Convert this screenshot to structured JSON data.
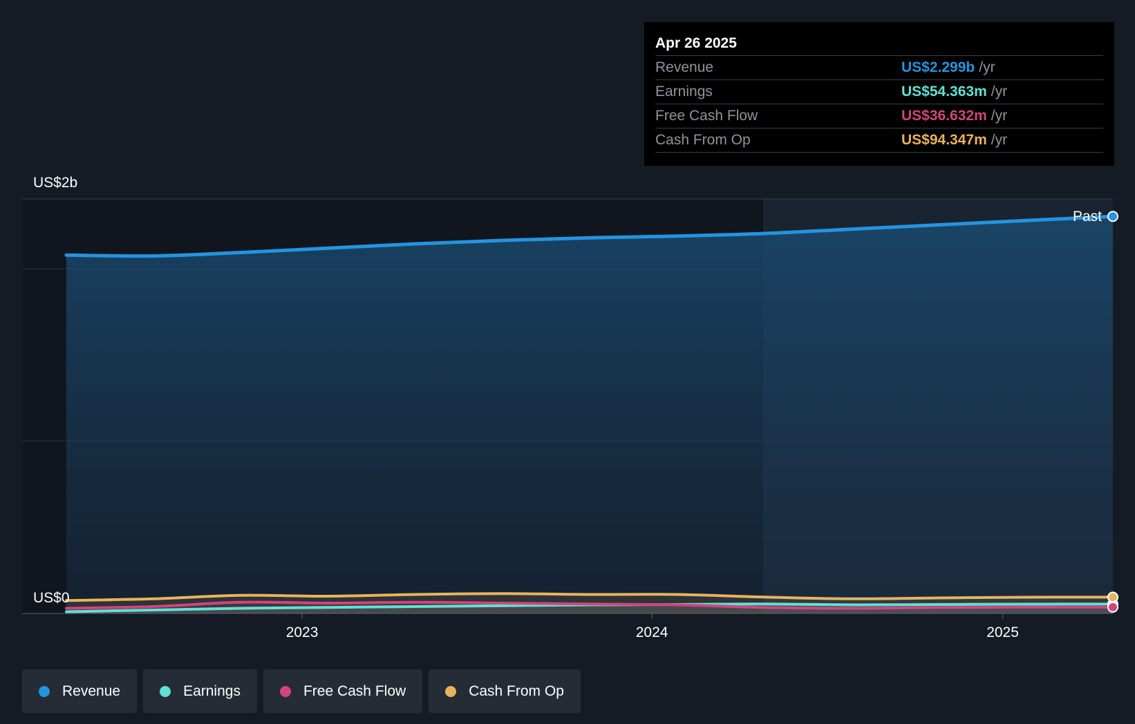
{
  "chart_data": {
    "type": "area",
    "y_labels": {
      "top": "US$2b",
      "bottom": "US$0"
    },
    "ylim": [
      0,
      2400
    ],
    "xlim": [
      "2022-04-30",
      "2025-04-26"
    ],
    "x_ticks": [
      {
        "label": "2023",
        "date": "2023-01-01"
      },
      {
        "label": "2024",
        "date": "2024-01-01"
      },
      {
        "label": "2025",
        "date": "2025-01-01"
      }
    ],
    "past_label": "Past",
    "past_region_start": "2024-04-27",
    "x": [
      "2022-04-30",
      "2022-07-30",
      "2022-10-29",
      "2023-01-28",
      "2023-04-29",
      "2023-07-29",
      "2023-10-28",
      "2024-01-27",
      "2024-04-27",
      "2024-07-27",
      "2024-10-26",
      "2025-01-25",
      "2025-04-26"
    ],
    "series": [
      {
        "name": "Revenue",
        "color": "#2394e0",
        "unit": "US$m",
        "values": [
          2075,
          2070,
          2090,
          2115,
          2140,
          2160,
          2175,
          2185,
          2200,
          2225,
          2250,
          2275,
          2299
        ]
      },
      {
        "name": "Earnings",
        "color": "#5ee2d5",
        "unit": "US$m",
        "values": [
          10,
          20,
          30,
          35,
          40,
          45,
          50,
          52,
          55,
          50,
          52,
          54,
          54.363
        ]
      },
      {
        "name": "Free Cash Flow",
        "color": "#d1447f",
        "unit": "US$m",
        "values": [
          30,
          40,
          65,
          60,
          65,
          60,
          55,
          50,
          35,
          30,
          35,
          37,
          36.632
        ]
      },
      {
        "name": "Cash From Op",
        "color": "#e9b35d",
        "unit": "US$m",
        "values": [
          75,
          85,
          105,
          100,
          110,
          115,
          110,
          110,
          95,
          85,
          90,
          94,
          94.347
        ]
      }
    ]
  },
  "tooltip": {
    "date": "Apr 26 2025",
    "rows": [
      {
        "label": "Revenue",
        "value": "US$2.299b",
        "unit": "/yr",
        "color": "#2394e0"
      },
      {
        "label": "Earnings",
        "value": "US$54.363m",
        "unit": "/yr",
        "color": "#5ee2d5"
      },
      {
        "label": "Free Cash Flow",
        "value": "US$36.632m",
        "unit": "/yr",
        "color": "#d1447f"
      },
      {
        "label": "Cash From Op",
        "value": "US$94.347m",
        "unit": "/yr",
        "color": "#e9b35d"
      }
    ]
  },
  "legend": [
    {
      "label": "Revenue",
      "color": "#2394e0"
    },
    {
      "label": "Earnings",
      "color": "#5ee2d5"
    },
    {
      "label": "Free Cash Flow",
      "color": "#d1447f"
    },
    {
      "label": "Cash From Op",
      "color": "#e9b35d"
    }
  ]
}
